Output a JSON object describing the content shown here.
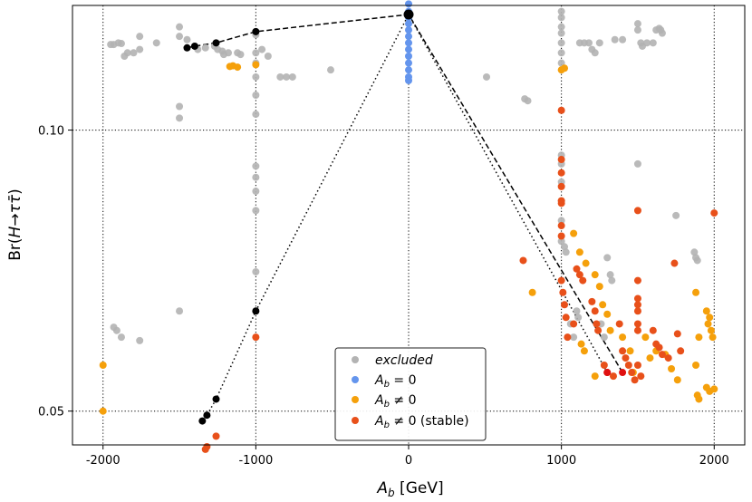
{
  "chart_data": {
    "type": "scatter",
    "xlabel": "A_b [GeV]",
    "ylabel": "Br(H→ττ̄)",
    "xlim": [
      -2200,
      2200
    ],
    "ylim": [
      0.046,
      0.136
    ],
    "yscale": "log",
    "grid": true,
    "grid_style": "dotted",
    "legend_position": "bottom-center",
    "x_ticks": [
      {
        "value": -2000,
        "label": "-2000"
      },
      {
        "value": -1000,
        "label": "-1000"
      },
      {
        "value": 0,
        "label": "0"
      },
      {
        "value": 1000,
        "label": "1000"
      },
      {
        "value": 2000,
        "label": "2000"
      }
    ],
    "y_ticks": [
      {
        "value": 0.05,
        "label": "0.05"
      },
      {
        "value": 0.1,
        "label": "0.10"
      }
    ],
    "legend": [
      {
        "label": "excluded",
        "color": "#b3b3b3"
      },
      {
        "label": "A_b = 0",
        "color": "#6495ed"
      },
      {
        "label": "A_b ≠ 0",
        "color": "#f5a00b"
      },
      {
        "label": "A_b ≠ 0 (stable)",
        "color": "#e8501a"
      }
    ],
    "series": [
      {
        "name": "excluded",
        "color": "#b3b3b3",
        "points": [
          [
            -1950,
            0.1235
          ],
          [
            -1930,
            0.1235
          ],
          [
            -1900,
            0.124
          ],
          [
            -1880,
            0.1238
          ],
          [
            -1860,
            0.12
          ],
          [
            -1840,
            0.121
          ],
          [
            -1800,
            0.121
          ],
          [
            -1760,
            0.122
          ],
          [
            -1760,
            0.126
          ],
          [
            -1650,
            0.124
          ],
          [
            -1500,
            0.126
          ],
          [
            -1500,
            0.129
          ],
          [
            -1450,
            0.125
          ],
          [
            -1380,
            0.122
          ],
          [
            -1330,
            0.1225
          ],
          [
            -1270,
            0.123
          ],
          [
            -1250,
            0.122
          ],
          [
            -1220,
            0.1215
          ],
          [
            -1210,
            0.1205
          ],
          [
            -1180,
            0.121
          ],
          [
            -1120,
            0.121
          ],
          [
            -1100,
            0.1205
          ],
          [
            -1000,
            0.1265
          ],
          [
            -1000,
            0.121
          ],
          [
            -1000,
            0.118
          ],
          [
            -1000,
            0.114
          ],
          [
            -1000,
            0.109
          ],
          [
            -1000,
            0.104
          ],
          [
            -1000,
            0.0915
          ],
          [
            -1000,
            0.089
          ],
          [
            -1000,
            0.086
          ],
          [
            -1000,
            0.082
          ],
          [
            -1000,
            0.0705
          ],
          [
            -960,
            0.122
          ],
          [
            -920,
            0.12
          ],
          [
            -840,
            0.114
          ],
          [
            -800,
            0.114
          ],
          [
            -760,
            0.114
          ],
          [
            -510,
            0.116
          ],
          [
            -1500,
            0.106
          ],
          [
            -1500,
            0.103
          ],
          [
            -1500,
            0.064
          ],
          [
            -1930,
            0.0615
          ],
          [
            -1910,
            0.061
          ],
          [
            -1880,
            0.06
          ],
          [
            -1760,
            0.0595
          ],
          [
            510,
            0.114
          ],
          [
            760,
            0.108
          ],
          [
            780,
            0.1075
          ],
          [
            1000,
            0.134
          ],
          [
            1000,
            0.132
          ],
          [
            1000,
            0.129
          ],
          [
            1000,
            0.127
          ],
          [
            1000,
            0.124
          ],
          [
            1000,
            0.121
          ],
          [
            1000,
            0.118
          ],
          [
            1000,
            0.094
          ],
          [
            1000,
            0.092
          ],
          [
            1000,
            0.088
          ],
          [
            1000,
            0.084
          ],
          [
            1000,
            0.08
          ],
          [
            1000,
            0.076
          ],
          [
            1020,
            0.075
          ],
          [
            1030,
            0.074
          ],
          [
            1060,
            0.062
          ],
          [
            1080,
            0.06
          ],
          [
            1100,
            0.064
          ],
          [
            1110,
            0.063
          ],
          [
            1120,
            0.124
          ],
          [
            1150,
            0.124
          ],
          [
            1180,
            0.124
          ],
          [
            1200,
            0.122
          ],
          [
            1220,
            0.121
          ],
          [
            1250,
            0.124
          ],
          [
            1260,
            0.062
          ],
          [
            1280,
            0.06
          ],
          [
            1300,
            0.073
          ],
          [
            1320,
            0.07
          ],
          [
            1330,
            0.069
          ],
          [
            1350,
            0.125
          ],
          [
            1400,
            0.125
          ],
          [
            1500,
            0.13
          ],
          [
            1500,
            0.128
          ],
          [
            1520,
            0.124
          ],
          [
            1530,
            0.123
          ],
          [
            1500,
            0.092
          ],
          [
            1560,
            0.124
          ],
          [
            1600,
            0.124
          ],
          [
            1620,
            0.128
          ],
          [
            1640,
            0.1285
          ],
          [
            1650,
            0.128
          ],
          [
            1660,
            0.127
          ],
          [
            1750,
            0.081
          ],
          [
            1870,
            0.074
          ],
          [
            1880,
            0.073
          ],
          [
            1890,
            0.0725
          ]
        ]
      },
      {
        "name": "A_b = 0",
        "color": "#6495ed",
        "points": [
          [
            0,
            0.1365
          ],
          [
            0,
            0.134
          ],
          [
            0,
            0.132
          ],
          [
            0,
            0.13
          ],
          [
            0,
            0.128
          ],
          [
            0,
            0.126
          ],
          [
            0,
            0.124
          ],
          [
            0,
            0.122
          ],
          [
            0,
            0.12
          ],
          [
            0,
            0.118
          ],
          [
            0,
            0.116
          ],
          [
            0,
            0.114
          ],
          [
            0,
            0.113
          ]
        ]
      },
      {
        "name": "A_b ≠ 0",
        "color": "#f5a00b",
        "points": [
          [
            -2000,
            0.056
          ],
          [
            -2000,
            0.05
          ],
          [
            -1170,
            0.117
          ],
          [
            -1150,
            0.1172
          ],
          [
            -1120,
            0.1168
          ],
          [
            -1000,
            0.1175
          ],
          [
            1000,
            0.116
          ],
          [
            1020,
            0.1165
          ],
          [
            810,
            0.067
          ],
          [
            1080,
            0.0775
          ],
          [
            1120,
            0.074
          ],
          [
            1160,
            0.072
          ],
          [
            1220,
            0.07
          ],
          [
            1250,
            0.068
          ],
          [
            1270,
            0.065
          ],
          [
            1300,
            0.0635
          ],
          [
            1320,
            0.061
          ],
          [
            1400,
            0.06
          ],
          [
            1450,
            0.058
          ],
          [
            1470,
            0.055
          ],
          [
            1550,
            0.06
          ],
          [
            1580,
            0.057
          ],
          [
            1620,
            0.058
          ],
          [
            1680,
            0.0575
          ],
          [
            1720,
            0.0555
          ],
          [
            1760,
            0.054
          ],
          [
            1880,
            0.067
          ],
          [
            1900,
            0.06
          ],
          [
            1950,
            0.064
          ],
          [
            1960,
            0.062
          ],
          [
            1970,
            0.063
          ],
          [
            1980,
            0.061
          ],
          [
            1990,
            0.06
          ],
          [
            1880,
            0.056
          ],
          [
            1890,
            0.052
          ],
          [
            1900,
            0.0515
          ],
          [
            1950,
            0.053
          ],
          [
            1970,
            0.0525
          ],
          [
            2000,
            0.0528
          ],
          [
            1130,
            0.059
          ],
          [
            1150,
            0.058
          ],
          [
            1220,
            0.0545
          ]
        ]
      },
      {
        "name": "A_b ≠ 0 (stable)",
        "color": "#e8501a",
        "points": [
          [
            -1330,
            0.0455
          ],
          [
            -1320,
            0.0458
          ],
          [
            -1260,
            0.047
          ],
          [
            -1000,
            0.06
          ],
          [
            750,
            0.0725
          ],
          [
            1000,
            0.105
          ],
          [
            1000,
            0.093
          ],
          [
            1000,
            0.09
          ],
          [
            1000,
            0.087
          ],
          [
            1000,
            0.084
          ],
          [
            1000,
            0.0835
          ],
          [
            1000,
            0.079
          ],
          [
            1000,
            0.077
          ],
          [
            1000,
            0.069
          ],
          [
            1010,
            0.067
          ],
          [
            1020,
            0.065
          ],
          [
            1030,
            0.063
          ],
          [
            1040,
            0.06
          ],
          [
            1080,
            0.062
          ],
          [
            1100,
            0.071
          ],
          [
            1120,
            0.07
          ],
          [
            1140,
            0.069
          ],
          [
            1200,
            0.0655
          ],
          [
            1220,
            0.064
          ],
          [
            1240,
            0.061
          ],
          [
            1280,
            0.056
          ],
          [
            1300,
            0.055
          ],
          [
            1340,
            0.0545
          ],
          [
            1380,
            0.062
          ],
          [
            1400,
            0.058
          ],
          [
            1420,
            0.057
          ],
          [
            1440,
            0.056
          ],
          [
            1460,
            0.055
          ],
          [
            1480,
            0.054
          ],
          [
            1500,
            0.082
          ],
          [
            1500,
            0.069
          ],
          [
            1500,
            0.066
          ],
          [
            1500,
            0.065
          ],
          [
            1500,
            0.064
          ],
          [
            1500,
            0.062
          ],
          [
            1500,
            0.061
          ],
          [
            1500,
            0.056
          ],
          [
            1520,
            0.0545
          ],
          [
            1600,
            0.061
          ],
          [
            1620,
            0.059
          ],
          [
            1640,
            0.0585
          ],
          [
            1660,
            0.0575
          ],
          [
            1700,
            0.057
          ],
          [
            1740,
            0.072
          ],
          [
            1760,
            0.0605
          ],
          [
            1780,
            0.058
          ],
          [
            2000,
            0.0815
          ],
          [
            1230,
            0.062
          ]
        ]
      }
    ],
    "paths": [
      {
        "style": "dashed",
        "points": [
          [
            -1450,
            0.1225
          ],
          [
            -1400,
            0.123
          ],
          [
            -1260,
            0.124
          ],
          [
            -1000,
            0.1275
          ],
          [
            0,
            0.133
          ],
          [
            1400,
            0.055
          ]
        ]
      },
      {
        "style": "dotted",
        "points": [
          [
            -1350,
            0.0488
          ],
          [
            -1320,
            0.0495
          ],
          [
            -1260,
            0.0515
          ],
          [
            -1000,
            0.064
          ],
          [
            0,
            0.133
          ],
          [
            1300,
            0.055
          ]
        ]
      }
    ],
    "path_markers": [
      {
        "style": "dashed",
        "points": [
          [
            -1450,
            0.1225
          ],
          [
            -1400,
            0.123
          ],
          [
            -1260,
            0.124
          ],
          [
            -1000,
            0.1275
          ]
        ],
        "color": "#000000"
      },
      {
        "style": "dotted",
        "points": [
          [
            -1350,
            0.0488
          ],
          [
            -1320,
            0.0495
          ],
          [
            -1260,
            0.0515
          ],
          [
            -1000,
            0.064
          ]
        ],
        "color": "#000000"
      },
      {
        "style": "center",
        "points": [
          [
            0,
            0.133
          ]
        ],
        "color": "#000000"
      },
      {
        "style": "end-red",
        "points": [
          [
            1300,
            0.055
          ],
          [
            1400,
            0.055
          ]
        ],
        "color": "#e01010"
      }
    ]
  }
}
